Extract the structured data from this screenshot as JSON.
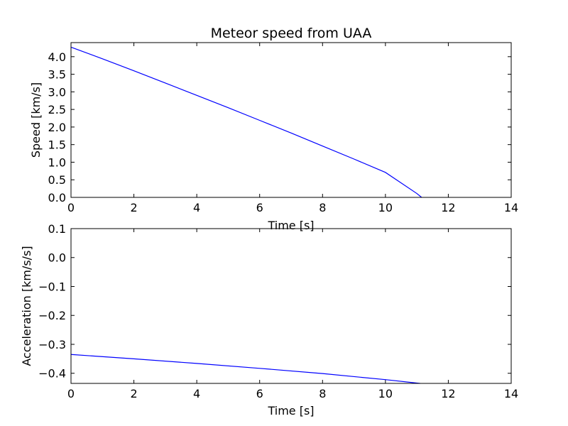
{
  "chart_data": [
    {
      "type": "line",
      "title": "Meteor speed from  UAA",
      "xlabel": "Time [s]",
      "ylabel": "Speed [km/s]",
      "xlim": [
        0,
        14
      ],
      "ylim": [
        0,
        4.4
      ],
      "xticks": [
        0,
        2,
        4,
        6,
        8,
        10,
        12,
        14
      ],
      "yticks": [
        0.0,
        0.5,
        1.0,
        1.5,
        2.0,
        2.5,
        3.0,
        3.5,
        4.0
      ],
      "grid": false,
      "color": "#0000ff",
      "series": [
        {
          "x": [
            0,
            1,
            2,
            3,
            4,
            5,
            6,
            7,
            8,
            9,
            10,
            11,
            11.15
          ],
          "y": [
            4.27,
            3.94,
            3.6,
            3.25,
            2.9,
            2.55,
            2.19,
            1.83,
            1.46,
            1.09,
            0.71,
            0.11,
            0.0
          ]
        }
      ]
    },
    {
      "type": "line",
      "title": "",
      "xlabel": "Time [s]",
      "ylabel": "Acceleration [km/s/s]",
      "xlim": [
        0,
        14
      ],
      "ylim": [
        -0.435,
        0.1
      ],
      "xticks": [
        0,
        2,
        4,
        6,
        8,
        10,
        12,
        14
      ],
      "yticks": [
        0.1,
        0.0,
        -0.1,
        -0.2,
        -0.3,
        -0.4
      ],
      "grid": false,
      "color": "#0000ff",
      "series": [
        {
          "x": [
            0,
            2,
            4,
            6,
            8,
            10,
            11.1
          ],
          "y": [
            -0.335,
            -0.35,
            -0.366,
            -0.383,
            -0.401,
            -0.422,
            -0.435
          ]
        }
      ]
    }
  ]
}
